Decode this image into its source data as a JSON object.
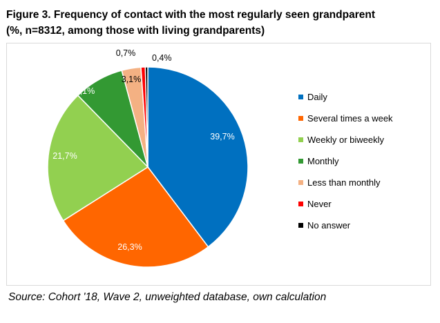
{
  "title": {
    "line1": "Figure 3. Frequency of contact with the most regularly seen grandparent",
    "line2": "(%, n=8312, among those with living grandparents)"
  },
  "source": "Source: Cohort '18, Wave 2, unweighted database, own calculation",
  "chart_data": {
    "type": "pie",
    "legend_position": "right",
    "slices": [
      {
        "name": "Daily",
        "value": 39.7,
        "label": "39,7%",
        "color": "#0070C0"
      },
      {
        "name": "Several times a week",
        "value": 26.3,
        "label": "26,3%",
        "color": "#FF6600"
      },
      {
        "name": "Weekly or biweekly",
        "value": 21.7,
        "label": "21,7%",
        "color": "#92D050"
      },
      {
        "name": "Monthly",
        "value": 8.1,
        "label": "8,1%",
        "color": "#339933"
      },
      {
        "name": "Less than monthly",
        "value": 3.1,
        "label": "3,1%",
        "color": "#F4B183"
      },
      {
        "name": "Never",
        "value": 0.7,
        "label": "0,7%",
        "color": "#FF0000"
      },
      {
        "name": "No answer",
        "value": 0.4,
        "label": "0,4%",
        "color": "#000000"
      }
    ]
  }
}
